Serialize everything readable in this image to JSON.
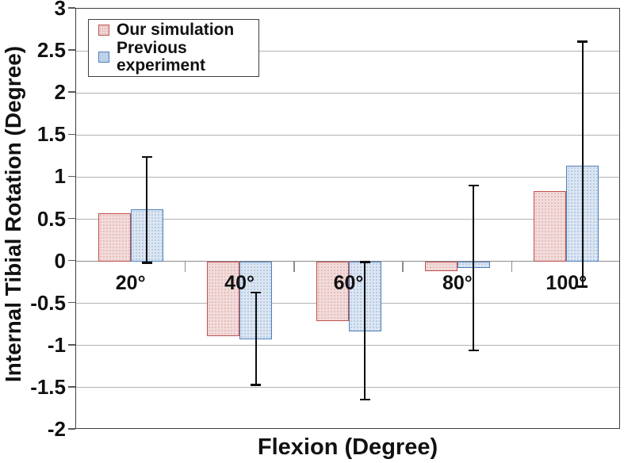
{
  "axes": {
    "xlabel": "Flexion (Degree)",
    "ylabel": "Internal Tibial Rotation (Degree)"
  },
  "chart_data": {
    "type": "bar",
    "title": "",
    "xlabel": "Flexion (Degree)",
    "ylabel": "Internal Tibial Rotation (Degree)",
    "categories": [
      "20°",
      "40°",
      "60°",
      "80°",
      "100°"
    ],
    "series": [
      {
        "name": "Our simulation",
        "values": [
          0.57,
          -0.89,
          -0.71,
          -0.12,
          0.83
        ]
      },
      {
        "name": "Previous experiment",
        "values": [
          0.62,
          -0.93,
          -0.83,
          -0.08,
          1.14
        ],
        "error_low": [
          -0.02,
          -1.47,
          -1.64,
          -1.06,
          -0.3
        ],
        "error_high": [
          1.24,
          -0.37,
          -0.01,
          0.9,
          2.61
        ]
      }
    ],
    "ylim": [
      -2,
      3
    ],
    "yticks": [
      3,
      2.5,
      2,
      1.5,
      1,
      0.5,
      0,
      -0.5,
      -1,
      -1.5,
      -2
    ],
    "grid": true,
    "legend_position": "top-left",
    "colors": {
      "our_simulation_border": "#C0504D",
      "our_simulation_fill": "#F2DCDB",
      "previous_experiment_border": "#4F81BD",
      "previous_experiment_fill": "#DCE6F2",
      "error_bar": "#000000",
      "gridline": "#B3B3B3"
    }
  }
}
